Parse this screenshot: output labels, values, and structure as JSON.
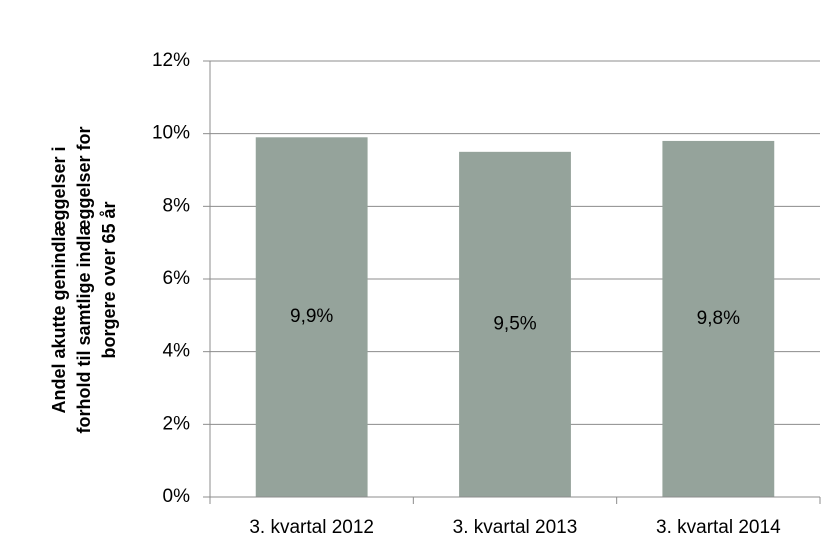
{
  "chart_data": {
    "type": "bar",
    "ylabel": [
      "Andel akutte genindlæggelser i",
      "forhold til samtlige indlæggelser for",
      "borgere over 65 år"
    ],
    "categories": [
      "3. kvartal 2012",
      "3. kvartal 2013",
      "3. kvartal 2014"
    ],
    "values": [
      9.9,
      9.5,
      9.8
    ],
    "value_labels": [
      "9,9%",
      "9,5%",
      "9,8%"
    ],
    "color": "#95a39b",
    "ylim": [
      0,
      12
    ],
    "yticks": [
      {
        "value": 0,
        "label": "0%"
      },
      {
        "value": 2,
        "label": "2%"
      },
      {
        "value": 4,
        "label": "4%"
      },
      {
        "value": 6,
        "label": "6%"
      },
      {
        "value": 8,
        "label": "8%"
      },
      {
        "value": 10,
        "label": "10%"
      },
      {
        "value": 12,
        "label": "12%"
      }
    ],
    "grid": true
  }
}
